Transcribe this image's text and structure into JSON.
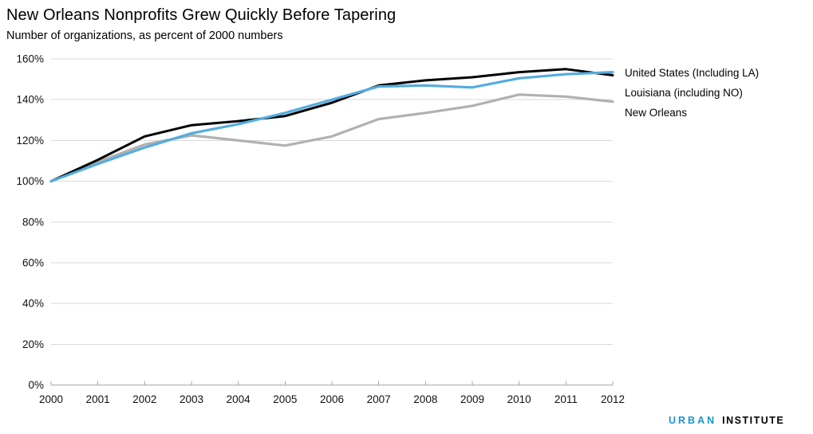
{
  "chart_data": {
    "type": "line",
    "title": "New Orleans Nonprofits Grew Quickly Before Tapering",
    "subtitle": "Number of organizations, as percent of 2000 numbers",
    "x": [
      2000,
      2001,
      2002,
      2003,
      2004,
      2005,
      2006,
      2007,
      2008,
      2009,
      2010,
      2011,
      2012
    ],
    "series": [
      {
        "name": "United States (Including LA)",
        "color": "#000000",
        "values": [
          100,
          110.5,
          122,
          127.5,
          129.5,
          132,
          138.5,
          147,
          149.5,
          151,
          153.5,
          155,
          152
        ]
      },
      {
        "name": "Louisiana (including NO)",
        "color": "#54acdf",
        "values": [
          100,
          108.5,
          116.5,
          123.5,
          128,
          133.5,
          140,
          146.5,
          147,
          146,
          150.5,
          152.5,
          153.5
        ]
      },
      {
        "name": "New Orleans",
        "color": "#b1b1b1",
        "values": [
          100,
          109.5,
          118,
          122.5,
          120,
          117.5,
          122,
          130.5,
          133.5,
          137,
          142.5,
          141.5,
          139
        ]
      }
    ],
    "ylim": [
      0,
      160
    ],
    "ytick_step": 20,
    "ytick_suffix": "%",
    "xlabel": "",
    "ylabel": "",
    "grid": true,
    "legend_position": "right"
  },
  "footer": {
    "brand_primary": "URBAN",
    "brand_secondary": "INSTITUTE",
    "brand_color": "#1696d2"
  }
}
